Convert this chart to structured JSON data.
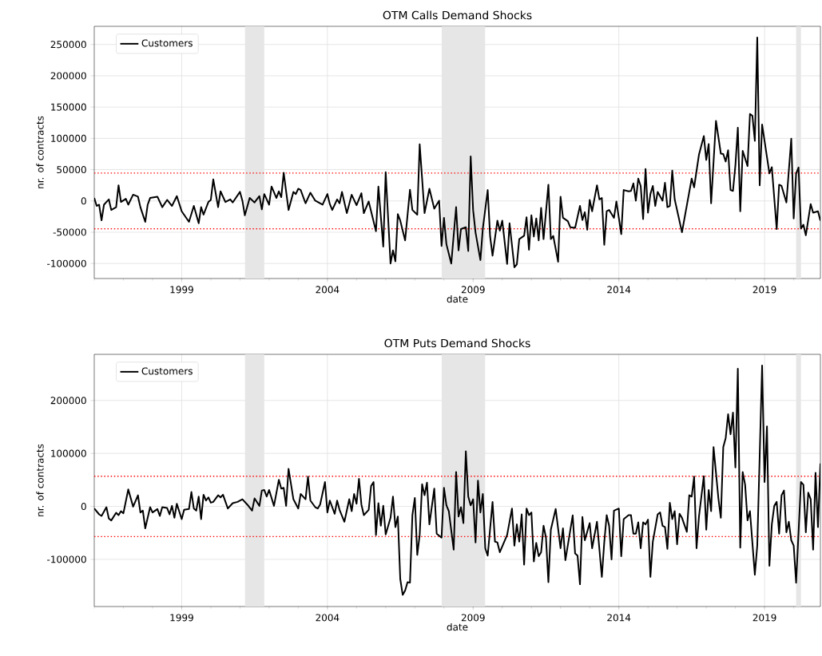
{
  "chart_data": [
    {
      "type": "line",
      "title": "OTM Calls Demand Shocks",
      "xlabel": "date",
      "ylabel": "nr. of contracts",
      "x": [
        "1996-01",
        "1996-02",
        "1996-03",
        "1996-04",
        "1996-05",
        "1996-07",
        "1996-08",
        "1996-10",
        "1996-11",
        "1996-12",
        "1997-02",
        "1997-03",
        "1997-05",
        "1997-07",
        "1997-08",
        "1997-10",
        "1997-11",
        "1997-12",
        "1998-03",
        "1998-05",
        "1998-07",
        "1998-09",
        "1998-11",
        "1999-01",
        "1999-04",
        "1999-06",
        "1999-08",
        "1999-09",
        "1999-10",
        "1999-12",
        "2000-01",
        "2000-02",
        "2000-04",
        "2000-05",
        "2000-07",
        "2000-09",
        "2000-10",
        "2001-01",
        "2001-02",
        "2001-03",
        "2001-05",
        "2001-07",
        "2001-09",
        "2001-10",
        "2001-11",
        "2002-01",
        "2002-02",
        "2002-04",
        "2002-05",
        "2002-06",
        "2002-07",
        "2002-09",
        "2002-11",
        "2002-12",
        "2003-01",
        "2003-02",
        "2003-04",
        "2003-06",
        "2003-08",
        "2003-11",
        "2004-01",
        "2004-02",
        "2004-03",
        "2004-05",
        "2004-06",
        "2004-07",
        "2004-09",
        "2004-11",
        "2005-01",
        "2005-03",
        "2005-04",
        "2005-06",
        "2005-09",
        "2005-10",
        "2005-12",
        "2006-01",
        "2006-03",
        "2006-04",
        "2006-05",
        "2006-06",
        "2006-07",
        "2006-09",
        "2006-11",
        "2006-12",
        "2007-02",
        "2007-03",
        "2007-05",
        "2007-07",
        "2007-09",
        "2007-11",
        "2007-12",
        "2008-01",
        "2008-02",
        "2008-04",
        "2008-06",
        "2008-07",
        "2008-08",
        "2008-10",
        "2008-11",
        "2008-12",
        "2009-01",
        "2009-02",
        "2009-04",
        "2009-05",
        "2009-07",
        "2009-08",
        "2009-09",
        "2009-11",
        "2009-12",
        "2010-01",
        "2010-03",
        "2010-04",
        "2010-06",
        "2010-07",
        "2010-08",
        "2010-10",
        "2010-11",
        "2010-12",
        "2011-01",
        "2011-02",
        "2011-03",
        "2011-04",
        "2011-05",
        "2011-06",
        "2011-08",
        "2011-09",
        "2011-10",
        "2011-12",
        "2012-01",
        "2012-02",
        "2012-04",
        "2012-05",
        "2012-07",
        "2012-09",
        "2012-10",
        "2012-11",
        "2012-12",
        "2013-01",
        "2013-02",
        "2013-04",
        "2013-05",
        "2013-06",
        "2013-07",
        "2013-08",
        "2013-09",
        "2013-11",
        "2013-12",
        "2014-02",
        "2014-03",
        "2014-05",
        "2014-06",
        "2014-07",
        "2014-08",
        "2014-09",
        "2014-10",
        "2014-11",
        "2014-12",
        "2015-01",
        "2015-02",
        "2015-03",
        "2015-04",
        "2015-05",
        "2015-07",
        "2015-08",
        "2015-09",
        "2015-10",
        "2015-11",
        "2015-12",
        "2016-03",
        "2016-07",
        "2016-08",
        "2016-10",
        "2016-12",
        "2017-01",
        "2017-02",
        "2017-03",
        "2017-05",
        "2017-07",
        "2017-08",
        "2017-09",
        "2017-10",
        "2017-11",
        "2017-12",
        "2018-01",
        "2018-02",
        "2018-03",
        "2018-04",
        "2018-06",
        "2018-07",
        "2018-08",
        "2018-09",
        "2018-10",
        "2018-11",
        "2018-12",
        "2019-03",
        "2019-04",
        "2019-06",
        "2019-07",
        "2019-08",
        "2019-10",
        "2019-12",
        "2020-01",
        "2020-02",
        "2020-03",
        "2020-04",
        "2020-05",
        "2020-06",
        "2020-08",
        "2020-09",
        "2020-11",
        "2020-12"
      ],
      "series": [
        {
          "name": "Customers",
          "color": "#000000",
          "values": [
            4700,
            -8000,
            -6000,
            -31000,
            -6000,
            2500,
            -14500,
            -10000,
            25000,
            -1700,
            3400,
            -6000,
            10000,
            6800,
            -10000,
            -33500,
            -6000,
            4700,
            6800,
            -10000,
            1700,
            -8000,
            7700,
            -16500,
            -33500,
            -8000,
            -35700,
            -10000,
            -22000,
            -1700,
            1700,
            34400,
            -10000,
            15300,
            -1700,
            2500,
            -2500,
            14500,
            400,
            -23000,
            4700,
            -2500,
            7700,
            -13600,
            11000,
            -6000,
            23000,
            4700,
            15300,
            6000,
            45000,
            -14500,
            14500,
            11000,
            19500,
            17400,
            -3800,
            13200,
            400,
            -6000,
            11000,
            -5000,
            -14500,
            2500,
            -3800,
            14500,
            -19500,
            9800,
            -6800,
            12300,
            -19500,
            -850,
            -48500,
            23000,
            -73000,
            46000,
            -100000,
            -79000,
            -96500,
            -21000,
            -31500,
            -63000,
            18000,
            -14500,
            -22000,
            90500,
            -19500,
            19500,
            -12300,
            400,
            -72000,
            -27000,
            -69000,
            -100000,
            -10000,
            -79000,
            -45000,
            -42000,
            -80000,
            71000,
            -14500,
            -50500,
            -94500,
            -44000,
            17400,
            -57000,
            -87500,
            -31500,
            -47500,
            -31500,
            -100700,
            -35700,
            -106000,
            -101500,
            -61000,
            -55700,
            -26000,
            -78000,
            -23000,
            -57000,
            -28000,
            -63000,
            -11000,
            -61000,
            26000,
            -61000,
            -56000,
            -97300,
            6800,
            -27000,
            -32300,
            -42000,
            -43000,
            -8000,
            -30500,
            -18000,
            -46000,
            1700,
            -16500,
            25000,
            2500,
            4700,
            -70000,
            -16500,
            -14500,
            -27000,
            -850,
            -53000,
            17400,
            15300,
            16000,
            28000,
            400,
            35700,
            24000,
            -29000,
            51000,
            -18700,
            11000,
            24000,
            -8000,
            14500,
            400,
            29000,
            -10000,
            -8000,
            48500,
            2500,
            -50000,
            35700,
            21700,
            74000,
            103700,
            65500,
            91000,
            -3800,
            128000,
            75600,
            75000,
            63000,
            81000,
            17400,
            16000,
            57000,
            117000,
            -16500,
            80000,
            55700,
            139000,
            136000,
            96000,
            261000,
            25000,
            122000,
            44000,
            54000,
            -45000,
            26000,
            24000,
            -2500,
            99500,
            -28000,
            44000,
            53500,
            -44000,
            -38000,
            -55000,
            -5000,
            -18700,
            -16500,
            -31500
          ]
        }
      ],
      "xlim": [
        "1996-01",
        "2020-12"
      ],
      "ylim": [
        -124000,
        279000
      ],
      "xticks": [
        "1999",
        "2004",
        "2009",
        "2014",
        "2019"
      ],
      "yticks": [
        -100000,
        -50000,
        0,
        50000,
        100000,
        150000,
        200000,
        250000
      ],
      "grid": true,
      "legend": "top left",
      "line_style": "solid",
      "ref_lines": [
        {
          "axis": "y",
          "value": 44500,
          "color": "#ff0000",
          "line_style": "dotted"
        },
        {
          "axis": "y",
          "value": -44500,
          "color": "#ff0000",
          "line_style": "dotted"
        }
      ],
      "bands": [
        {
          "axis": "x",
          "from": "2001-03",
          "to": "2001-11",
          "color": "#e6e6e6"
        },
        {
          "axis": "x",
          "from": "2007-12",
          "to": "2009-06",
          "color": "#e6e6e6"
        },
        {
          "axis": "x",
          "from": "2020-02",
          "to": "2020-04",
          "color": "#e6e6e6"
        }
      ]
    },
    {
      "type": "line",
      "title": "OTM Puts Demand Shocks",
      "xlabel": "date",
      "ylabel": "nr. of contracts",
      "x": [
        "1996-01",
        "1996-03",
        "1996-04",
        "1996-06",
        "1996-07",
        "1996-08",
        "1996-10",
        "1996-11",
        "1996-12",
        "1997-01",
        "1997-03",
        "1997-05",
        "1997-07",
        "1997-08",
        "1997-09",
        "1997-10",
        "1997-12",
        "1998-01",
        "1998-03",
        "1998-04",
        "1998-05",
        "1998-07",
        "1998-08",
        "1998-09",
        "1998-10",
        "1998-11",
        "1999-01",
        "1999-02",
        "1999-04",
        "1999-05",
        "1999-06",
        "1999-07",
        "1999-08",
        "1999-09",
        "1999-10",
        "1999-11",
        "1999-12",
        "2000-01",
        "2000-02",
        "2000-04",
        "2000-05",
        "2000-06",
        "2000-08",
        "2000-10",
        "2000-12",
        "2001-02",
        "2001-04",
        "2001-06",
        "2001-07",
        "2001-09",
        "2001-10",
        "2001-11",
        "2001-12",
        "2002-01",
        "2002-03",
        "2002-05",
        "2002-06",
        "2002-07",
        "2002-08",
        "2002-09",
        "2002-11",
        "2003-01",
        "2003-02",
        "2003-04",
        "2003-05",
        "2003-06",
        "2003-08",
        "2003-09",
        "2003-10",
        "2003-12",
        "2004-01",
        "2004-02",
        "2004-04",
        "2004-05",
        "2004-06",
        "2004-08",
        "2004-10",
        "2004-11",
        "2004-12",
        "2005-01",
        "2005-02",
        "2005-03",
        "2005-04",
        "2005-06",
        "2005-07",
        "2005-08",
        "2005-09",
        "2005-10",
        "2005-11",
        "2005-12",
        "2006-01",
        "2006-03",
        "2006-04",
        "2006-05",
        "2006-06",
        "2006-07",
        "2006-08",
        "2006-09",
        "2006-10",
        "2006-11",
        "2006-12",
        "2007-01",
        "2007-02",
        "2007-03",
        "2007-04",
        "2007-05",
        "2007-06",
        "2007-07",
        "2007-09",
        "2007-10",
        "2007-12",
        "2008-01",
        "2008-02",
        "2008-03",
        "2008-05",
        "2008-06",
        "2008-07",
        "2008-08",
        "2008-09",
        "2008-10",
        "2008-11",
        "2008-12",
        "2009-01",
        "2009-02",
        "2009-03",
        "2009-04",
        "2009-05",
        "2009-06",
        "2009-07",
        "2009-09",
        "2009-10",
        "2009-11",
        "2009-12",
        "2010-03",
        "2010-05",
        "2010-06",
        "2010-07",
        "2010-08",
        "2010-09",
        "2010-10",
        "2010-11",
        "2010-12",
        "2011-01",
        "2011-02",
        "2011-03",
        "2011-04",
        "2011-05",
        "2011-06",
        "2011-07",
        "2011-08",
        "2011-09",
        "2011-11",
        "2012-01",
        "2012-02",
        "2012-03",
        "2012-06",
        "2012-07",
        "2012-08",
        "2012-09",
        "2012-10",
        "2012-11",
        "2013-01",
        "2013-02",
        "2013-04",
        "2013-06",
        "2013-07",
        "2013-08",
        "2013-09",
        "2013-10",
        "2013-11",
        "2014-01",
        "2014-02",
        "2014-03",
        "2014-05",
        "2014-06",
        "2014-07",
        "2014-08",
        "2014-09",
        "2014-10",
        "2014-11",
        "2014-12",
        "2015-01",
        "2015-02",
        "2015-03",
        "2015-05",
        "2015-06",
        "2015-07",
        "2015-08",
        "2015-09",
        "2015-10",
        "2015-11",
        "2015-12",
        "2016-01",
        "2016-02",
        "2016-03",
        "2016-05",
        "2016-06",
        "2016-07",
        "2016-08",
        "2016-09",
        "2016-10",
        "2016-12",
        "2017-01",
        "2017-02",
        "2017-03",
        "2017-04",
        "2017-06",
        "2017-07",
        "2017-08",
        "2017-09",
        "2017-10",
        "2017-11",
        "2017-12",
        "2018-01",
        "2018-02",
        "2018-03",
        "2018-04",
        "2018-05",
        "2018-06",
        "2018-07",
        "2018-09",
        "2018-10",
        "2018-12",
        "2019-01",
        "2019-02",
        "2019-03",
        "2019-04",
        "2019-05",
        "2019-06",
        "2019-07",
        "2019-08",
        "2019-09",
        "2019-10",
        "2019-11",
        "2019-12",
        "2020-01",
        "2020-02",
        "2020-04",
        "2020-05",
        "2020-06",
        "2020-07",
        "2020-08",
        "2020-09",
        "2020-10",
        "2020-11",
        "2020-12"
      ],
      "series": [
        {
          "name": "Customers",
          "color": "#000000",
          "values": [
            -4000,
            -15000,
            -18000,
            -1500,
            -23000,
            -26500,
            -12000,
            -16500,
            -9000,
            -13000,
            32000,
            -500,
            21000,
            -11500,
            -8000,
            -41500,
            -1500,
            -11500,
            -5000,
            -18000,
            -1500,
            -3000,
            -15000,
            1000,
            -21500,
            5000,
            -24000,
            -6500,
            -5000,
            27000,
            -4000,
            -8000,
            18500,
            -24000,
            22000,
            11000,
            17000,
            7000,
            8500,
            21000,
            17000,
            22000,
            -4000,
            6000,
            8500,
            13500,
            3500,
            -8000,
            15000,
            1000,
            30000,
            31000,
            18500,
            31000,
            1000,
            50000,
            33500,
            35000,
            1000,
            71000,
            13500,
            -4000,
            23500,
            13500,
            56000,
            11000,
            -1500,
            -4000,
            3500,
            46000,
            -11500,
            11000,
            -14000,
            11000,
            -6500,
            -29000,
            13500,
            -9000,
            23500,
            5000,
            52000,
            3500,
            -16500,
            -6500,
            38500,
            46000,
            -54000,
            6000,
            -36500,
            1000,
            -53000,
            -21500,
            18500,
            -39000,
            -19000,
            -137000,
            -167000,
            -159000,
            -143000,
            -144000,
            -16500,
            16000,
            -91500,
            -54000,
            42000,
            21000,
            45000,
            -34000,
            33500,
            -51500,
            -59000,
            35000,
            2000,
            -9000,
            -81500,
            65000,
            -19000,
            -1500,
            -31500,
            104000,
            18500,
            2000,
            13500,
            -68000,
            48500,
            -11500,
            23500,
            -79000,
            -93000,
            8500,
            -66500,
            -68000,
            -86500,
            -54000,
            -4000,
            -74000,
            -34000,
            -66500,
            -15000,
            -110000,
            -4000,
            -16500,
            -11500,
            -104000,
            -69000,
            -94000,
            -86500,
            -36500,
            -59000,
            -143000,
            -44000,
            -5000,
            -79000,
            -41500,
            -101500,
            -17000,
            -89000,
            -93000,
            -147000,
            -20000,
            -64000,
            -31500,
            -79000,
            -29000,
            -133000,
            -68000,
            -16500,
            -36500,
            -100000,
            -8000,
            -4000,
            -94000,
            -24000,
            -16500,
            -16500,
            -51500,
            -51500,
            -30000,
            -79000,
            -30000,
            -34000,
            -25000,
            -133000,
            -66500,
            -15000,
            -11500,
            -36500,
            -39000,
            -80000,
            7000,
            -24000,
            -9000,
            -71500,
            -14000,
            -21500,
            -48000,
            21000,
            18500,
            56000,
            -79000,
            -19000,
            57000,
            -44000,
            31000,
            -9000,
            112000,
            15000,
            -21500,
            112000,
            129000,
            174000,
            136000,
            177000,
            73500,
            260000,
            -78000,
            65000,
            41000,
            -26500,
            -9000,
            -129000,
            -74000,
            266000,
            46000,
            151000,
            -112000,
            -34000,
            1000,
            8500,
            -51500,
            21000,
            30000,
            -49000,
            -29000,
            -64000,
            -74000,
            -144000,
            46000,
            41000,
            -49000,
            26000,
            13500,
            -81500,
            63500,
            -39000,
            81000
          ]
        }
      ],
      "xlim": [
        "1996-01",
        "2020-12"
      ],
      "ylim": [
        -189000,
        287000
      ],
      "xticks": [
        "1999",
        "2004",
        "2009",
        "2014",
        "2019"
      ],
      "yticks": [
        -100000,
        0,
        100000,
        200000
      ],
      "grid": true,
      "legend": "top left",
      "line_style": "solid",
      "ref_lines": [
        {
          "axis": "y",
          "value": 57000,
          "color": "#ff0000",
          "line_style": "dotted"
        },
        {
          "axis": "y",
          "value": -57000,
          "color": "#ff0000",
          "line_style": "dotted"
        }
      ],
      "bands": [
        {
          "axis": "x",
          "from": "2001-03",
          "to": "2001-11",
          "color": "#e6e6e6"
        },
        {
          "axis": "x",
          "from": "2007-12",
          "to": "2009-06",
          "color": "#e6e6e6"
        },
        {
          "axis": "x",
          "from": "2020-02",
          "to": "2020-04",
          "color": "#e6e6e6"
        }
      ]
    }
  ]
}
